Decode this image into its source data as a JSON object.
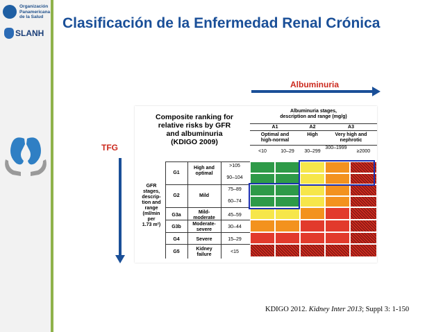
{
  "slide": {
    "title": "Clasificación de la Enfermedad Renal Crónica",
    "albuminuria_label": "Albuminuria",
    "tfg_label": "TFG",
    "logos": {
      "paho_line1": "Organización",
      "paho_line2": "Panamericana",
      "paho_line3": "de la Salud",
      "slanh": "SLANH"
    },
    "citation": {
      "prefix": "KDIGO 2012. ",
      "journal": "Kidney Inter 2013",
      "suffix": "; Suppl 3: 1-150"
    }
  },
  "table": {
    "title_lines": [
      "Composite ranking for",
      "relative risks by GFR",
      "and albuminuria",
      "(KDIGO 2009)"
    ],
    "albuminuria_header_lines": [
      "Albuminuria stages,",
      "description and range (mg/g)"
    ],
    "albuminuria_stages": [
      {
        "code": "A1",
        "desc_lines": [
          "Optimal and",
          "high-normal"
        ]
      },
      {
        "code": "A2",
        "desc_lines": [
          "High"
        ]
      },
      {
        "code": "A3",
        "desc_lines": [
          "Very high and",
          "nephrotic"
        ]
      }
    ],
    "albuminuria_ranges": [
      "<10",
      "10–29",
      "30–299",
      "300–1999",
      "≥2000"
    ],
    "gfr_header_lines": [
      "GFR",
      "stages,",
      "descrip-",
      "tion and",
      "range",
      "(ml/min",
      "per",
      "1.73 m²)"
    ],
    "gfr_stages": [
      {
        "code": "G1",
        "desc": "High and optimal",
        "ranges": [
          ">105",
          "90–104"
        ]
      },
      {
        "code": "G2",
        "desc": "Mild",
        "ranges": [
          "75–89",
          "60–74"
        ]
      },
      {
        "code": "G3a",
        "desc": "Mild-moderate",
        "ranges": [
          "45–59"
        ]
      },
      {
        "code": "G3b",
        "desc": "Moderate-severe",
        "ranges": [
          "30–44"
        ]
      },
      {
        "code": "G4",
        "desc": "Severe",
        "ranges": [
          "15–29"
        ]
      },
      {
        "code": "G5",
        "desc": "Kidney failure",
        "ranges": [
          "<15"
        ]
      }
    ],
    "risk_grid": [
      [
        "green",
        "green",
        "yellow",
        "orange",
        "hatch"
      ],
      [
        "green",
        "green",
        "yellow",
        "orange",
        "hatch"
      ],
      [
        "green",
        "green",
        "yellow",
        "orange",
        "hatch"
      ],
      [
        "green",
        "green",
        "yellow",
        "orange",
        "hatch"
      ],
      [
        "yellow",
        "yellow",
        "orange",
        "red",
        "hatch"
      ],
      [
        "orange",
        "orange",
        "red",
        "red",
        "hatch"
      ],
      [
        "red",
        "red",
        "red",
        "red",
        "hatch"
      ],
      [
        "hatch",
        "hatch",
        "hatch",
        "hatch",
        "hatch"
      ]
    ],
    "colors": {
      "green": "#2e9a48",
      "yellow": "#f6e64a",
      "orange": "#f3921e",
      "red": "#e23a2c",
      "hatch": "#cf2a1f",
      "highlight": "#1a2fb0"
    }
  }
}
